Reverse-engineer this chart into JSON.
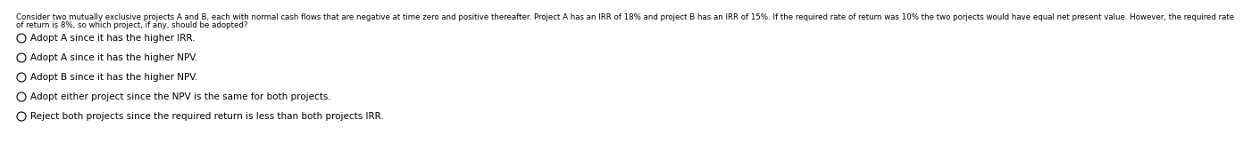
{
  "question": "Consider two mutually exclusive projects A and B, each with normal cash flows that are negative at time zero and positive thereafter. Project A has an IRR of 18% and project B has an IRR of 15%. If the required rate of return was 10% the two porjects would have equal net present value. However, the required rate\nof return is 8%, so which project, if any, should be adopted?",
  "options": [
    "Adopt A since it has the higher IRR.",
    "Adopt A since it has the higher NPV.",
    "Adopt B since it has the higher NPV.",
    "Adopt either project since the NPV is the same for both projects.",
    "Reject both projects since the required return is less than both projects IRR."
  ],
  "background_color": "#ffffff",
  "text_color": "#000000",
  "question_fontsize": 6.2,
  "option_fontsize": 7.5,
  "fig_width": 12.0,
  "fig_height": 1.69
}
